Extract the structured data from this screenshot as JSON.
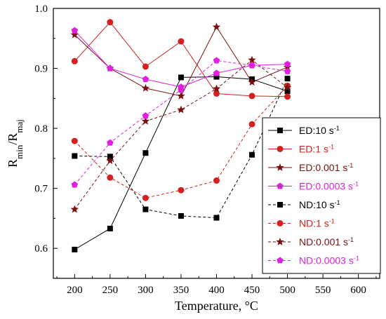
{
  "chart_data": {
    "type": "line",
    "xlabel": "Temperature, °C",
    "ylabel_main": "R",
    "ylabel_sub1": "min",
    "ylabel_mid": "/R",
    "ylabel_sub2": "maj",
    "xlim": [
      170,
      630
    ],
    "ylim": [
      0.55,
      1.0
    ],
    "xticks": [
      200,
      250,
      300,
      350,
      400,
      450,
      500,
      550,
      600
    ],
    "yticks": [
      0.6,
      0.7,
      0.8,
      0.9,
      1.0
    ],
    "xtick_labels": [
      "200",
      "250",
      "300",
      "350",
      "400",
      "450",
      "500",
      "550",
      "600"
    ],
    "ytick_labels": [
      "0.6",
      "0.7",
      "0.8",
      "0.9",
      "1.0"
    ],
    "legend_placement": "right",
    "series": [
      {
        "name": "ED:10 s",
        "sup": "-1",
        "color": "#000000",
        "marker": "square",
        "dash": false,
        "x": [
          200,
          250,
          300,
          350,
          400,
          450,
          500
        ],
        "y": [
          0.598,
          0.633,
          0.759,
          0.885,
          0.886,
          0.882,
          0.862
        ]
      },
      {
        "name": "ED:1 s",
        "sup": "-1",
        "color": "#d42020",
        "marker": "circle",
        "dash": false,
        "x": [
          200,
          250,
          300,
          350,
          400,
          450,
          500
        ],
        "y": [
          0.912,
          0.977,
          0.903,
          0.945,
          0.858,
          0.854,
          0.853
        ]
      },
      {
        "name": "ED:0.001 s",
        "sup": "-1",
        "color": "#7a0f0f",
        "marker": "star",
        "dash": false,
        "x": [
          200,
          250,
          300,
          350,
          400,
          450,
          500
        ],
        "y": [
          0.956,
          0.9,
          0.867,
          0.854,
          0.969,
          0.877,
          0.902
        ]
      },
      {
        "name": "ED:0.0003 s",
        "sup": "-1",
        "color": "#e020e0",
        "marker": "pentagon",
        "dash": false,
        "x": [
          200,
          250,
          300,
          350,
          400,
          450,
          500
        ],
        "y": [
          0.963,
          0.9,
          0.882,
          0.869,
          0.892,
          0.905,
          0.907
        ]
      },
      {
        "name": "ND:10 s",
        "sup": "-1",
        "color": "#000000",
        "marker": "square",
        "dash": true,
        "x": [
          200,
          250,
          300,
          350,
          400,
          450,
          500
        ],
        "y": [
          0.754,
          0.753,
          0.665,
          0.654,
          0.651,
          0.756,
          0.883
        ]
      },
      {
        "name": "ND:1 s",
        "sup": "-1",
        "color": "#d42020",
        "marker": "circle",
        "dash": true,
        "x": [
          200,
          250,
          300,
          350,
          400,
          450,
          500
        ],
        "y": [
          0.779,
          0.718,
          0.684,
          0.697,
          0.713,
          0.807,
          0.871
        ]
      },
      {
        "name": "ND:0.001 s",
        "sup": "-1",
        "color": "#7a0f0f",
        "marker": "star",
        "dash": true,
        "x": [
          200,
          250,
          300,
          350,
          400,
          450,
          500
        ],
        "y": [
          0.665,
          0.746,
          0.812,
          0.831,
          0.866,
          0.914,
          0.868
        ]
      },
      {
        "name": "ND:0.0003 s",
        "sup": "-1",
        "color": "#e020e0",
        "marker": "pentagon",
        "dash": true,
        "x": [
          200,
          250,
          300,
          350,
          400,
          450,
          500
        ],
        "y": [
          0.706,
          0.776,
          0.821,
          0.864,
          0.913,
          0.905,
          0.895
        ]
      }
    ]
  }
}
